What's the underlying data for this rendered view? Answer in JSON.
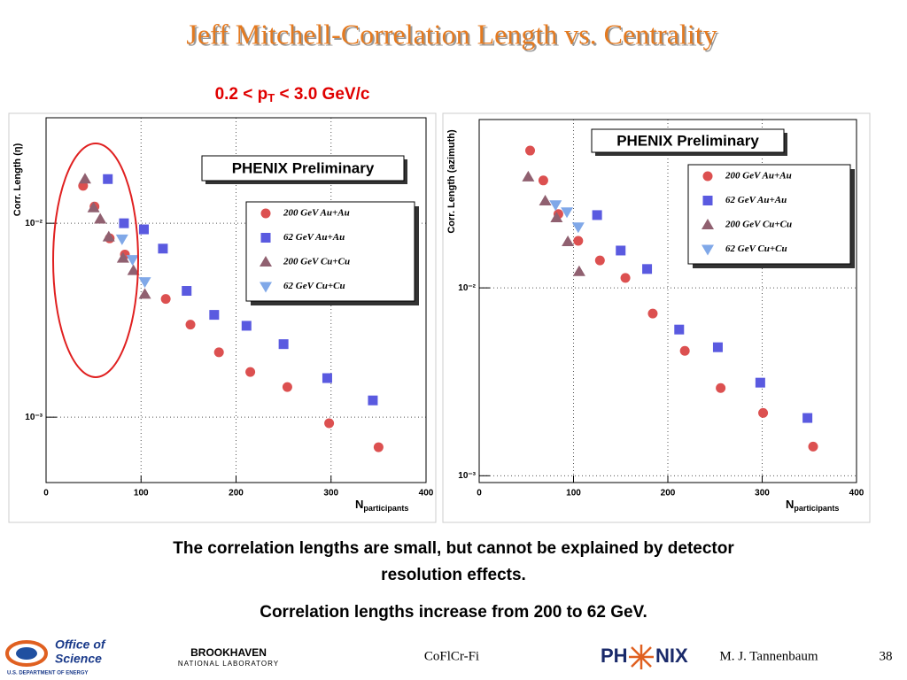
{
  "title": "Jeff Mitchell-Correlation Length vs. Centrality",
  "subtitle": {
    "text": "0.2 < p",
    "sub": "T",
    "rest": " < 3.0 GeV/c"
  },
  "chart_data": [
    {
      "type": "scatter",
      "annotation": "PHENIX Preliminary",
      "y_label": "Corr. Length (η)",
      "x_label": "N",
      "x_label_sub": "participants",
      "log_y": true,
      "grid": true,
      "xlim": [
        0,
        400
      ],
      "xticks": [
        0,
        100,
        200,
        300,
        400
      ],
      "ylim": [
        0.00046,
        0.035
      ],
      "yticks": [
        {
          "value": 0.001,
          "label": "10⁻³"
        },
        {
          "value": 0.01,
          "label": "10⁻²"
        }
      ],
      "series": [
        {
          "name": "200 GeV Au+Au",
          "color": "#dc5050",
          "marker": "circle",
          "x": [
            39,
            51,
            67,
            83,
            126,
            152,
            182,
            215,
            254,
            298,
            350
          ],
          "values": [
            0.0156,
            0.0122,
            0.00836,
            0.0069,
            0.00407,
            0.003,
            0.00216,
            0.00171,
            0.00143,
            0.00093,
            0.0007
          ]
        },
        {
          "name": "62 GeV Au+Au",
          "color": "#5a5ae0",
          "marker": "square",
          "x": [
            65,
            82,
            103,
            123,
            148,
            177,
            211,
            250,
            296,
            344
          ],
          "values": [
            0.0169,
            0.01,
            0.0093,
            0.0074,
            0.00448,
            0.00337,
            0.00296,
            0.00238,
            0.00159,
            0.00122
          ]
        },
        {
          "name": "200 GeV Cu+Cu",
          "color": "#906070",
          "marker": "triangle-up",
          "x": [
            41,
            50,
            57,
            66,
            81,
            92,
            104
          ],
          "values": [
            0.0169,
            0.012,
            0.0105,
            0.0085,
            0.0066,
            0.0057,
            0.0043
          ]
        },
        {
          "name": "62 GeV Cu+Cu",
          "color": "#80a8e8",
          "marker": "triangle-down",
          "x": [
            80,
            91,
            104
          ],
          "values": [
            0.0083,
            0.0065,
            0.005
          ]
        }
      ]
    },
    {
      "type": "scatter",
      "annotation": "PHENIX Preliminary",
      "y_label": "Corr. Length (azimuth)",
      "x_label": "N",
      "x_label_sub": "participants",
      "log_y": true,
      "grid": true,
      "xlim": [
        0,
        400
      ],
      "xticks": [
        0,
        100,
        200,
        300,
        400
      ],
      "ylim": [
        0.00092,
        0.0787
      ],
      "yticks": [
        {
          "value": 0.001,
          "label": "10⁻³"
        },
        {
          "value": 0.01,
          "label": "10⁻²"
        }
      ],
      "series": [
        {
          "name": "200 GeV Au+Au",
          "color": "#dc5050",
          "marker": "circle",
          "x": [
            54,
            68,
            84,
            105,
            128,
            155,
            184,
            218,
            256,
            301,
            354
          ],
          "values": [
            0.0538,
            0.0373,
            0.0247,
            0.0178,
            0.014,
            0.0113,
            0.0073,
            0.00462,
            0.00293,
            0.00216,
            0.00143
          ]
        },
        {
          "name": "62 GeV Au+Au",
          "color": "#5a5ae0",
          "marker": "square",
          "x": [
            125,
            150,
            178,
            212,
            253,
            298,
            348
          ],
          "values": [
            0.0244,
            0.0158,
            0.0126,
            0.006,
            0.00483,
            0.00313,
            0.00203
          ]
        },
        {
          "name": "200 GeV Cu+Cu",
          "color": "#906070",
          "marker": "triangle-up",
          "x": [
            52,
            70,
            82,
            94,
            106
          ],
          "values": [
            0.0389,
            0.029,
            0.0236,
            0.0176,
            0.0122
          ]
        },
        {
          "name": "62 GeV Cu+Cu",
          "color": "#80a8e8",
          "marker": "triangle-down",
          "x": [
            81,
            93,
            105
          ],
          "values": [
            0.0277,
            0.0254,
            0.0211
          ]
        }
      ]
    }
  ],
  "notes": [
    "The correlation lengths are small, but cannot be explained by detector",
    "resolution effects.",
    "Correlation lengths increase from 200 to 62 GeV."
  ],
  "footer": {
    "office": "Office of",
    "science": "Science",
    "doe": "U.S. DEPARTMENT OF ENERGY",
    "bnl": "BROOKHAVEN",
    "bnl_sub": "NATIONAL LABORATORY",
    "center": "CoFlCr-Fi",
    "phenix_a": "PH",
    "phenix_b": "NIX",
    "author": "M. J. Tannenbaum",
    "page": "38"
  }
}
